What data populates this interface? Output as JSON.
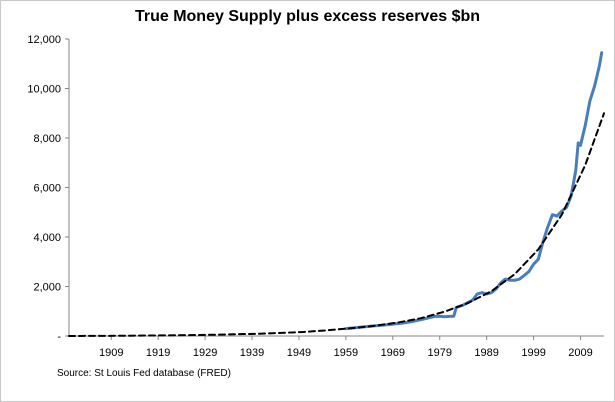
{
  "chart_data": {
    "type": "line",
    "title": "True Money Supply plus excess reserves $bn",
    "xlabel": "",
    "ylabel": "",
    "x_ticks": [
      1909,
      1919,
      1929,
      1939,
      1949,
      1959,
      1969,
      1979,
      1989,
      1999,
      2009
    ],
    "xlim": [
      1900,
      2014
    ],
    "y_ticks": [
      "-",
      "2,000",
      "4,000",
      "6,000",
      "8,000",
      "10,000",
      "12,000"
    ],
    "y_tick_values": [
      0,
      2000,
      4000,
      6000,
      8000,
      10000,
      12000
    ],
    "ylim": [
      0,
      12000
    ],
    "grid": false,
    "legend": "none",
    "series": [
      {
        "style": "solid",
        "color": "#4a7ebb",
        "x": [
          1959,
          1961,
          1963,
          1965,
          1967,
          1969,
          1971,
          1973,
          1975,
          1977,
          1978,
          1979,
          1980,
          1981,
          1982,
          1982.5,
          1984,
          1986,
          1987,
          1988,
          1989,
          1990,
          1991,
          1992,
          1993,
          1994,
          1995,
          1996,
          1997,
          1998,
          1999,
          2000,
          2001,
          2002,
          2003,
          2004,
          2005,
          2006,
          2007,
          2008,
          2008.5,
          2009,
          2010,
          2011,
          2012,
          2013,
          2013.5
        ],
        "y": [
          300,
          330,
          370,
          410,
          440,
          480,
          520,
          580,
          660,
          750,
          790,
          800,
          780,
          790,
          800,
          1150,
          1250,
          1450,
          1700,
          1750,
          1700,
          1750,
          1900,
          2150,
          2300,
          2250,
          2250,
          2300,
          2450,
          2600,
          2900,
          3100,
          3800,
          4400,
          4900,
          4850,
          5050,
          5200,
          5650,
          6700,
          7800,
          7700,
          8500,
          9500,
          10100,
          10900,
          11450
        ]
      },
      {
        "style": "dashed",
        "color": "#000000",
        "x": [
          1900,
          1910,
          1920,
          1930,
          1940,
          1950,
          1955,
          1960,
          1965,
          1970,
          1975,
          1980,
          1985,
          1990,
          1995,
          2000,
          2005,
          2010,
          2014
        ],
        "y": [
          0,
          10,
          25,
          50,
          90,
          160,
          230,
          310,
          410,
          540,
          720,
          980,
          1330,
          1810,
          2500,
          3500,
          4900,
          6900,
          9000
        ]
      }
    ]
  },
  "source_note": "Source: St Louis Fed  database (FRED)"
}
